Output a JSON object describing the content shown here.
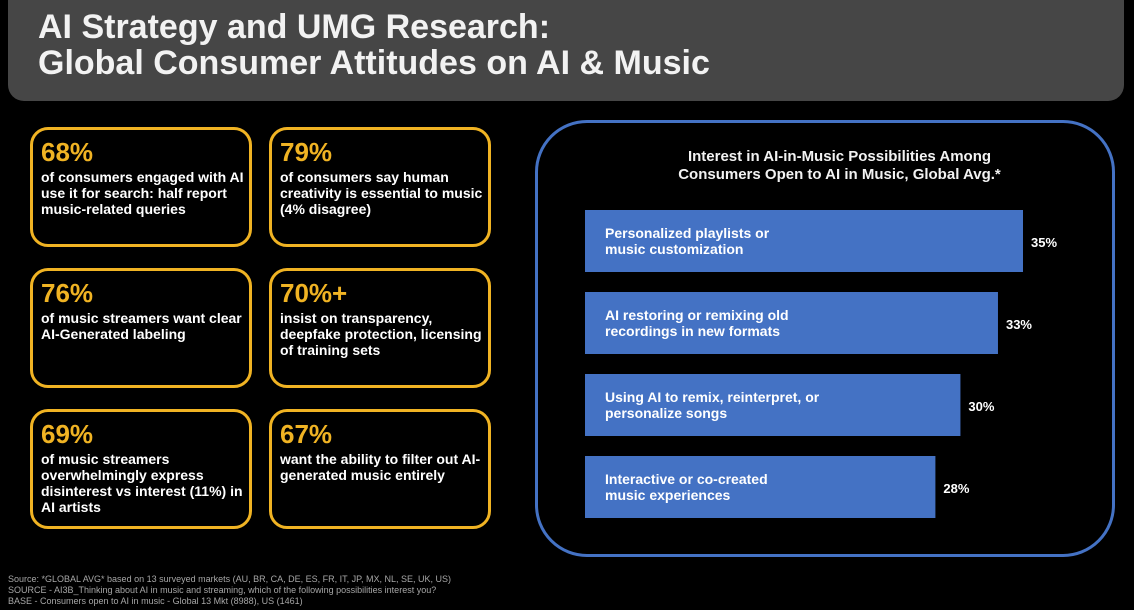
{
  "header": {
    "title_line1": "AI Strategy and UMG Research:",
    "title_line2": "Global Consumer Attitudes on AI & Music"
  },
  "stats": [
    {
      "value": "68%",
      "description": "of consumers engaged with AI use it for search: half report music-related queries"
    },
    {
      "value": "79%",
      "description": "of consumers say human creativity is essential to music (4% disagree)"
    },
    {
      "value": "76%",
      "description": "of music streamers want clear AI-Generated labeling"
    },
    {
      "value": "70%+",
      "description": "insist on transparency, deepfake protection, licensing of training sets"
    },
    {
      "value": "69%",
      "description": "of music streamers overwhelmingly express disinterest vs interest (11%) in AI artists"
    },
    {
      "value": "67%",
      "description": "want the ability to filter out AI-generated music entirely"
    }
  ],
  "chart_data": {
    "type": "bar",
    "orientation": "horizontal",
    "title_line1": "Interest in AI-in-Music Possibilities Among",
    "title_line2": "Consumers Open to AI in Music, Global Avg.*",
    "categories": [
      "Personalized playlists or music customization",
      "AI restoring or remixing old recordings in new formats",
      "Using AI to remix, reinterpret, or personalize songs",
      "Interactive or co-created music experiences"
    ],
    "category_lines": [
      [
        "Personalized playlists or",
        "music customization"
      ],
      [
        "AI restoring or remixing old",
        "recordings in new formats"
      ],
      [
        "Using AI to remix, reinterpret, or",
        "personalize songs"
      ],
      [
        "Interactive or co-created",
        "music experiences"
      ]
    ],
    "values": [
      35,
      33,
      30,
      28
    ],
    "value_labels": [
      "35%",
      "33%",
      "30%",
      "28%"
    ],
    "bar_color": "#4472c4",
    "grid": false,
    "legend": "none"
  },
  "footer": {
    "source": "Source: *GLOBAL AVG* based on 13 surveyed markets (AU, BR, CA, DE, ES, FR, IT, JP, MX, NL, SE, UK, US)",
    "question": "SOURCE - AI3B_Thinking about AI in music and streaming, which of the following possibilities interest you?",
    "base": "BASE - Consumers open to AI in music - Global 13 Mkt (8988), US (1461)"
  },
  "colors": {
    "accent": "#f0b323",
    "panel_border": "#4472c4",
    "header_bg": "#464646",
    "background": "#000000"
  }
}
